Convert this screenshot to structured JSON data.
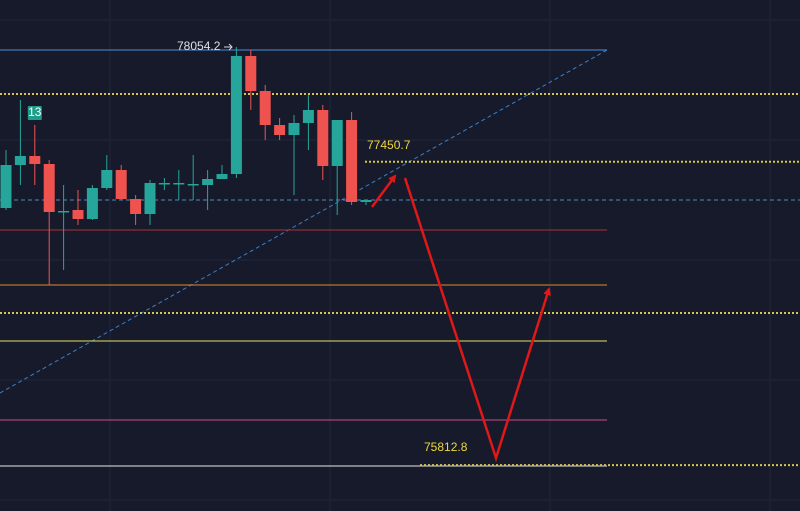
{
  "chart_data": {
    "type": "candlestick",
    "categories": [
      null,
      null,
      null,
      null,
      null,
      null,
      null,
      null,
      null,
      null,
      null,
      null,
      null,
      null,
      null,
      null,
      null,
      null,
      null,
      null,
      null,
      null,
      null,
      null,
      null,
      null
    ],
    "open": [
      77201.0,
      77433.2,
      77481.8,
      77438.6,
      77184.8,
      77190.2,
      77141.6,
      77309.0,
      77406.2,
      77249.6,
      77168.6,
      77336.0,
      77336.0,
      77330.6,
      77325.2,
      77357.6,
      77384.6,
      78021.8,
      77832.8,
      77649.2,
      77595.2,
      77660.0,
      77730.2,
      77427.8,
      77676.2,
      77233.4
    ],
    "high": [
      77514.2,
      77784.2,
      77649.2,
      77460.2,
      77325.2,
      77298.2,
      77325.2,
      77487.2,
      77433.2,
      77271.2,
      77352.2,
      77363.0,
      77406.2,
      77487.2,
      77406.2,
      77433.2,
      78070.4,
      78054.2,
      77865.2,
      77687.0,
      77703.2,
      77811.2,
      77757.2,
      77676.2,
      77719.4,
      77244.2
    ],
    "low": [
      77190.2,
      77325.2,
      77325.2,
      76785.2,
      76866.2,
      77109.2,
      77136.2,
      77298.2,
      77244.2,
      77109.2,
      77109.2,
      77298.2,
      77244.2,
      77244.2,
      77190.2,
      77363.0,
      77363.0,
      77730.2,
      77568.2,
      77568.2,
      77271.2,
      77514.2,
      77352.2,
      77163.2,
      77217.2,
      77217.2
    ],
    "close": [
      77433.2,
      77481.8,
      77438.6,
      77179.4,
      77184.8,
      77141.6,
      77309.0,
      77406.2,
      77249.6,
      77168.6,
      77336.0,
      77336.0,
      77336.0,
      77330.6,
      77357.6,
      77384.6,
      78021.8,
      77832.8,
      77649.2,
      77595.2,
      77660.0,
      77730.2,
      77427.8,
      77676.2,
      77233.4,
      77244.2
    ],
    "up_color": "#26a69a",
    "down_color": "#ef5350",
    "ylim": [
      75564.8,
      78324.2
    ],
    "marker_label": "13",
    "levels": [
      {
        "value": 78054.2,
        "color": "#4a90d9",
        "style": "solid"
      },
      {
        "value": 77816.6,
        "color": "#d6c54a",
        "style": "dotted"
      },
      {
        "value": 77450.7,
        "color": "#d6c54a",
        "style": "dotted"
      },
      {
        "value": 77244.2,
        "color": "#4a8fc0",
        "style": "dashed"
      },
      {
        "value": 77082.2,
        "color": "#b0303a",
        "style": "solid"
      },
      {
        "value": 76785.2,
        "color": "#e08a30",
        "style": "solid"
      },
      {
        "value": 76634.0,
        "color": "#d6c54a",
        "style": "dotted"
      },
      {
        "value": 76482.8,
        "color": "#e6e05a",
        "style": "solid"
      },
      {
        "value": 76056.2,
        "color": "#d04a8a",
        "style": "solid"
      },
      {
        "value": 75808.0,
        "color": "#e8e8e8",
        "style": "solid"
      },
      {
        "value": 75812.8,
        "color": "#d6c54a",
        "style": "dotted"
      }
    ]
  }
}
